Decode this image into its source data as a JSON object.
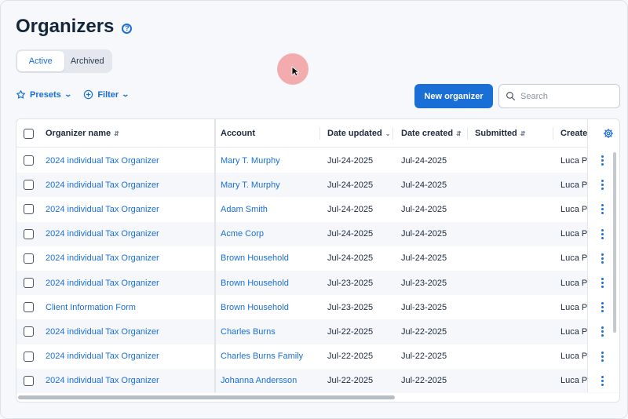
{
  "page": {
    "title": "Organizers",
    "help_icon": "question-circle-icon"
  },
  "tabs": [
    {
      "label": "Active",
      "selected": true
    },
    {
      "label": "Archived",
      "selected": false
    }
  ],
  "toolbar": {
    "presets_label": "Presets",
    "filter_label": "Filter",
    "new_button_label": "New organizer",
    "search_placeholder": "Search"
  },
  "table": {
    "columns": {
      "name": "Organizer name",
      "account": "Account",
      "date_updated": "Date updated",
      "date_created": "Date created",
      "submitted": "Submitted",
      "created_by": "Created"
    },
    "rows": [
      {
        "name": "2024 individual Tax Organizer",
        "account": "Mary T. Murphy",
        "date_updated": "Jul-24-2025",
        "date_created": "Jul-24-2025",
        "submitted": "",
        "created_by": "Luca Pa"
      },
      {
        "name": "2024 individual Tax Organizer",
        "account": "Mary T. Murphy",
        "date_updated": "Jul-24-2025",
        "date_created": "Jul-24-2025",
        "submitted": "",
        "created_by": "Luca Pa"
      },
      {
        "name": "2024 individual Tax Organizer",
        "account": "Adam Smith",
        "date_updated": "Jul-24-2025",
        "date_created": "Jul-24-2025",
        "submitted": "",
        "created_by": "Luca Pa"
      },
      {
        "name": "2024 individual Tax Organizer",
        "account": "Acme Corp",
        "date_updated": "Jul-24-2025",
        "date_created": "Jul-24-2025",
        "submitted": "",
        "created_by": "Luca Pa"
      },
      {
        "name": "2024 individual Tax Organizer",
        "account": "Brown Household",
        "date_updated": "Jul-24-2025",
        "date_created": "Jul-24-2025",
        "submitted": "",
        "created_by": "Luca Pa"
      },
      {
        "name": "2024 individual Tax Organizer",
        "account": "Brown Household",
        "date_updated": "Jul-23-2025",
        "date_created": "Jul-23-2025",
        "submitted": "",
        "created_by": "Luca Pa"
      },
      {
        "name": "Client Information Form",
        "account": "Brown Household",
        "date_updated": "Jul-23-2025",
        "date_created": "Jul-23-2025",
        "submitted": "",
        "created_by": "Luca Pa"
      },
      {
        "name": "2024 individual Tax Organizer",
        "account": "Charles Burns",
        "date_updated": "Jul-22-2025",
        "date_created": "Jul-22-2025",
        "submitted": "",
        "created_by": "Luca Pa"
      },
      {
        "name": "2024 individual Tax Organizer",
        "account": "Charles Burns Family",
        "date_updated": "Jul-22-2025",
        "date_created": "Jul-22-2025",
        "submitted": "",
        "created_by": "Luca Pa"
      },
      {
        "name": "2024 individual Tax Organizer",
        "account": "Johanna Andersson",
        "date_updated": "Jul-22-2025",
        "date_created": "Jul-22-2025",
        "submitted": "",
        "created_by": "Luca Pa"
      }
    ]
  },
  "colors": {
    "accent": "#1a6fd6",
    "cursor_halo": "#f06e6e"
  }
}
